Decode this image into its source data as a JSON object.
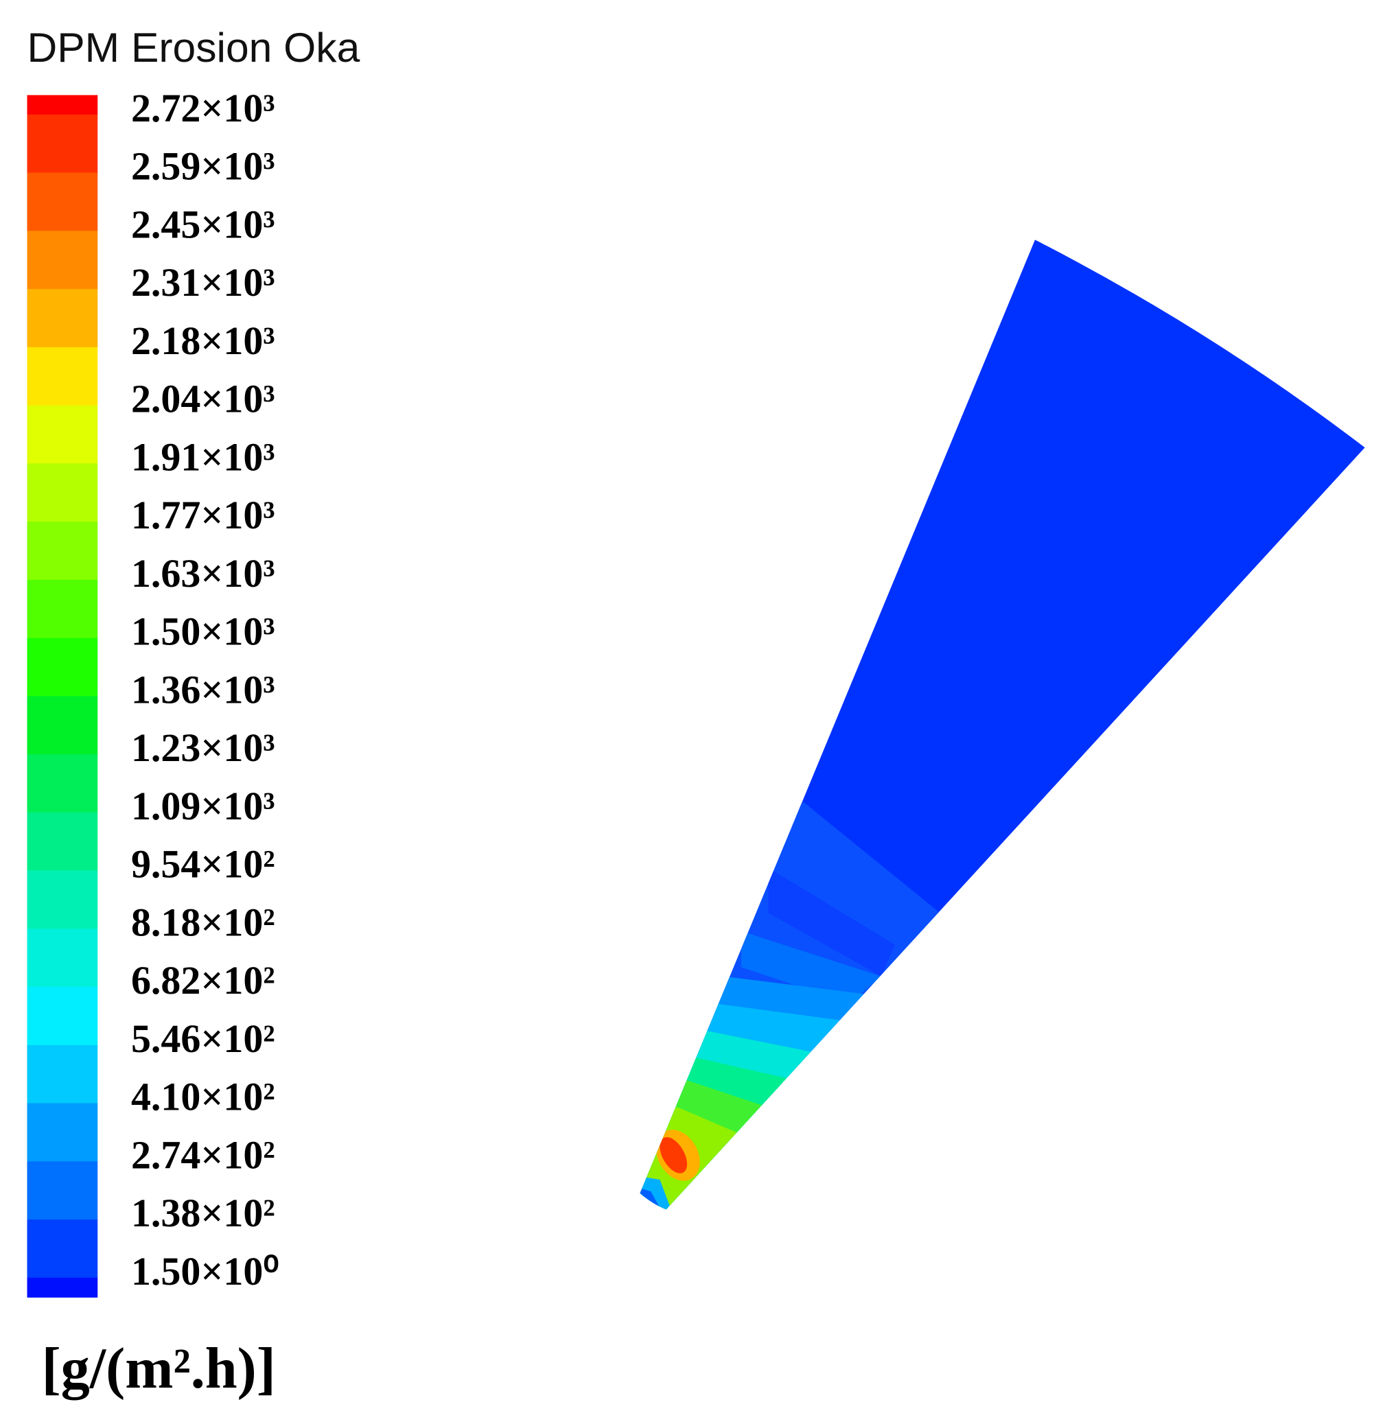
{
  "legend": {
    "title": "DPM Erosion Oka",
    "labels": [
      "2.72×10³",
      "2.59×10³",
      "2.45×10³",
      "2.31×10³",
      "2.18×10³",
      "2.04×10³",
      "1.91×10³",
      "1.77×10³",
      "1.63×10³",
      "1.50×10³",
      "1.36×10³",
      "1.23×10³",
      "1.09×10³",
      "9.54×10²",
      "8.18×10²",
      "6.82×10²",
      "5.46×10²",
      "4.10×10²",
      "2.74×10²",
      "1.38×10²",
      "1.50×10⁰"
    ],
    "units": "[g/(m².h)]"
  }
}
